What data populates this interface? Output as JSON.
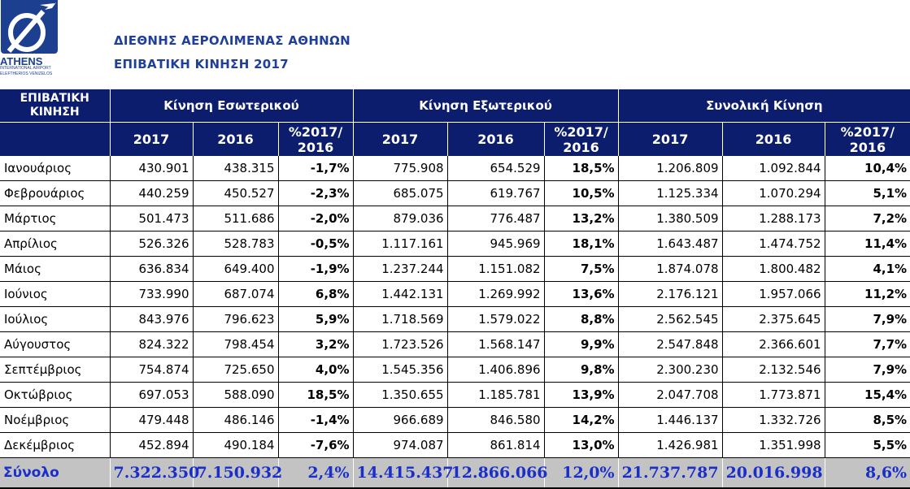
{
  "logo": {
    "word": "ATHENS",
    "sub1": "INTERNATIONAL AIRPORT",
    "sub2": "ELEFTHERIOS VENIZELOS",
    "color": "#1c3f8f"
  },
  "header": {
    "line1": "ΔΙΕΘΝΗΣ ΑΕΡΟΛΙΜΕΝΑΣ ΑΘΗΝΩΝ",
    "line2": "ΕΠΙΒΑΤΙΚΗ ΚΙΝΗΣΗ 2017",
    "color": "#1f3f9a"
  },
  "table": {
    "corner_line1": "ΕΠΙΒΑΤΙΚΗ",
    "corner_line2": "ΚΙΝΗΣΗ",
    "groups": [
      "Κίνηση Εσωτερικού",
      "Κίνηση Εξωτερικού",
      "Συνολική Κίνηση"
    ],
    "sub": {
      "y1": "2017",
      "y2": "2016",
      "pct_line1": "%2017/",
      "pct_line2": "2016"
    },
    "header_color": "#0d1d6e",
    "rows": [
      [
        "Ιανουάριος",
        "430.901",
        "438.315",
        "-1,7%",
        "775.908",
        "654.529",
        "18,5%",
        "1.206.809",
        "1.092.844",
        "10,4%"
      ],
      [
        "Φεβρουάριος",
        "440.259",
        "450.527",
        "-2,3%",
        "685.075",
        "619.767",
        "10,5%",
        "1.125.334",
        "1.070.294",
        "5,1%"
      ],
      [
        "Μάρτιος",
        "501.473",
        "511.686",
        "-2,0%",
        "879.036",
        "776.487",
        "13,2%",
        "1.380.509",
        "1.288.173",
        "7,2%"
      ],
      [
        "Απρίλιος",
        "526.326",
        "528.783",
        "-0,5%",
        "1.117.161",
        "945.969",
        "18,1%",
        "1.643.487",
        "1.474.752",
        "11,4%"
      ],
      [
        "Μάιος",
        "636.834",
        "649.400",
        "-1,9%",
        "1.237.244",
        "1.151.082",
        "7,5%",
        "1.874.078",
        "1.800.482",
        "4,1%"
      ],
      [
        "Ιούνιος",
        "733.990",
        "687.074",
        "6,8%",
        "1.442.131",
        "1.269.992",
        "13,6%",
        "2.176.121",
        "1.957.066",
        "11,2%"
      ],
      [
        "Ιούλιος",
        "843.976",
        "796.623",
        "5,9%",
        "1.718.569",
        "1.579.022",
        "8,8%",
        "2.562.545",
        "2.375.645",
        "7,9%"
      ],
      [
        "Αύγουστος",
        "824.322",
        "798.454",
        "3,2%",
        "1.723.526",
        "1.568.147",
        "9,9%",
        "2.547.848",
        "2.366.601",
        "7,7%"
      ],
      [
        "Σεπτέμβριος",
        "754.874",
        "725.650",
        "4,0%",
        "1.545.356",
        "1.406.896",
        "9,8%",
        "2.300.230",
        "2.132.546",
        "7,9%"
      ],
      [
        "Οκτώβριος",
        "697.053",
        "588.090",
        "18,5%",
        "1.350.655",
        "1.185.781",
        "13,9%",
        "2.047.708",
        "1.773.871",
        "15,4%"
      ],
      [
        "Νοέμβριος",
        "479.448",
        "486.146",
        "-1,4%",
        "966.689",
        "846.580",
        "14,2%",
        "1.446.137",
        "1.332.726",
        "8,5%"
      ],
      [
        "Δεκέμβριος",
        "452.894",
        "490.184",
        "-7,6%",
        "974.087",
        "861.814",
        "13,0%",
        "1.426.981",
        "1.351.998",
        "5,5%"
      ]
    ],
    "total": [
      "Σύνολο",
      "7.322.350",
      "7.150.932",
      "2,4%",
      "14.415.437",
      "12.866.066",
      "12,0%",
      "21.737.787",
      "20.016.998",
      "8,6%"
    ],
    "total_color": "#1a2fc8",
    "total_bg": "#c3c3c3"
  }
}
